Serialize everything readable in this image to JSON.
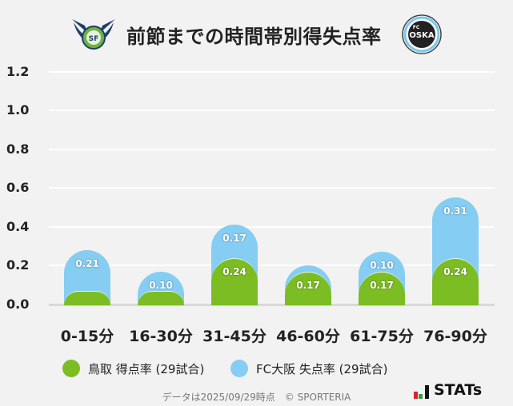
{
  "header": {
    "title": "前節までの時間帯別得失点率",
    "left_logo": "tottori-crest",
    "right_logo": "fc-osaka-crest"
  },
  "legend": {
    "home_label": "鳥取 得点率 (29試合)",
    "away_label": "FC大阪 失点率 (29試合)",
    "home_color": "#7bbd22",
    "away_color": "#85cdf3"
  },
  "footer": {
    "note": "データは2025/09/29時点　© SPORTERIA",
    "brand": "STATs"
  },
  "chart_data": {
    "type": "bar",
    "stacked": true,
    "title": "前節までの時間帯別得失点率",
    "categories": [
      "0-15分",
      "16-30分",
      "31-45分",
      "46-60分",
      "61-75分",
      "76-90分"
    ],
    "series": [
      {
        "name": "鳥取 得点率 (29試合)",
        "color": "#7bbd22",
        "values": [
          0.07,
          0.07,
          0.24,
          0.17,
          0.17,
          0.24
        ],
        "labels": [
          "",
          "",
          "0.24",
          "0.17",
          "0.17",
          "0.24"
        ]
      },
      {
        "name": "FC大阪 失点率 (29試合)",
        "color": "#85cdf3",
        "values": [
          0.21,
          0.1,
          0.17,
          0.03,
          0.1,
          0.31
        ],
        "labels": [
          "0.21",
          "0.10",
          "0.17",
          "",
          "0.10",
          "0.31"
        ]
      }
    ],
    "yticks": [
      "0.0",
      "0.2",
      "0.4",
      "0.6",
      "0.8",
      "1.0",
      "1.2"
    ],
    "ylim": [
      0,
      1.2
    ],
    "xlabel": "",
    "ylabel": "",
    "grid": true,
    "legend_position": "bottom"
  }
}
